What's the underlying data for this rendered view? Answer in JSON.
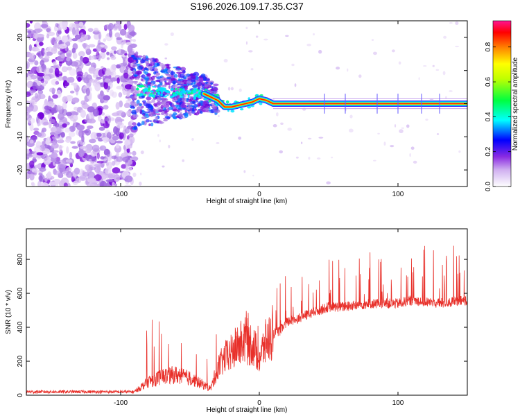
{
  "title": "S196.2026.109.17.35.C37",
  "chart_data": [
    {
      "type": "heatmap",
      "name": "spectrogram",
      "title": "S196.2026.109.17.35.C37",
      "xlabel": "Height of straight line (km)",
      "ylabel": "Frequency (Hz)",
      "xlim": [
        -168,
        150
      ],
      "ylim": [
        -25,
        25
      ],
      "x_ticks": [
        -100,
        0,
        100
      ],
      "x_tick_labels": [
        "-100",
        "0",
        "100"
      ],
      "y_ticks": [
        20,
        10,
        0,
        -10,
        -20
      ],
      "y_tick_labels": [
        "20",
        "10",
        "0",
        "-10",
        "-20"
      ],
      "colorbar": {
        "label": "Normalized spectral amplitude",
        "range": [
          0,
          0.95
        ],
        "ticks": [
          0.0,
          0.2,
          0.4,
          0.6,
          0.8
        ],
        "tick_labels": [
          "0.0",
          "0.2",
          "0.4",
          "0.6",
          "0.8"
        ],
        "colors": [
          "#ffffff",
          "#8a2be2",
          "#0000ff",
          "#00ffff",
          "#00ff00",
          "#ffff00",
          "#ff8000",
          "#ff0000",
          "#ff1493"
        ]
      },
      "ridge": {
        "description": "main signal trace frequency vs height",
        "x": [
          -90,
          -70,
          -50,
          -40,
          -35,
          -30,
          -25,
          -20,
          -15,
          -10,
          -5,
          0,
          5,
          10,
          150
        ],
        "y": [
          4,
          3.5,
          3,
          3,
          2,
          1,
          -1,
          -1,
          -0.5,
          0,
          0.5,
          1.5,
          1,
          0,
          0
        ]
      }
    },
    {
      "type": "line",
      "name": "snr",
      "xlabel": "Height of straight line (km)",
      "ylabel": "SNR (10 * v/v)",
      "xlim": [
        -168,
        150
      ],
      "ylim": [
        0,
        980
      ],
      "x_ticks": [
        -100,
        0,
        100
      ],
      "x_tick_labels": [
        "-100",
        "0",
        "100"
      ],
      "y_ticks": [
        0,
        200,
        400,
        600,
        800
      ],
      "y_tick_labels": [
        "0",
        "200",
        "400",
        "600",
        "800"
      ],
      "color": "#e8302a",
      "envelope": {
        "x": [
          -168,
          -90,
          -80,
          -70,
          -60,
          -50,
          -40,
          -35,
          -30,
          -25,
          -20,
          -15,
          -10,
          -5,
          0,
          5,
          10,
          15,
          20,
          30,
          40,
          50,
          60,
          70,
          80,
          90,
          100,
          110,
          120,
          130,
          140,
          150
        ],
        "y": [
          20,
          20,
          80,
          110,
          120,
          100,
          60,
          40,
          160,
          220,
          250,
          300,
          320,
          300,
          220,
          320,
          360,
          380,
          430,
          460,
          490,
          520,
          520,
          530,
          540,
          540,
          540,
          560,
          550,
          540,
          550,
          560
        ]
      }
    }
  ]
}
